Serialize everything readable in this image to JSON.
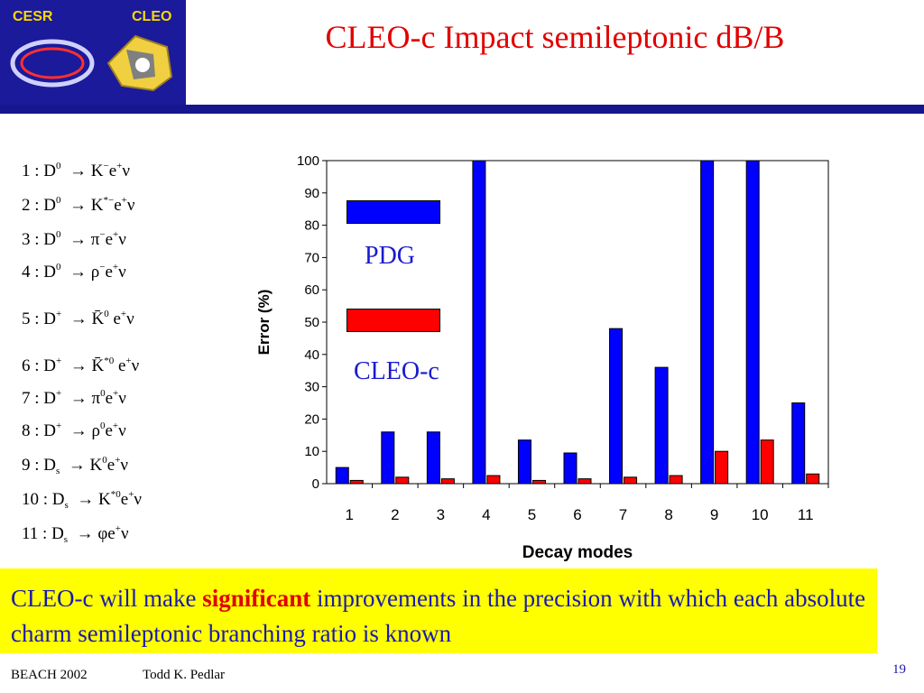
{
  "logo": {
    "left_text": "CESR",
    "right_text": "CLEO"
  },
  "title": "CLEO-c Impact semileptonic dB/B",
  "decay_modes": [
    {
      "n": "1",
      "parent": "D",
      "parent_sup": "0",
      "parent_sub": "",
      "arrow": "→",
      "final": [
        {
          "t": "K"
        },
        {
          "sup": "−"
        },
        {
          "t": "e"
        },
        {
          "sup": "+"
        },
        {
          "t": "ν"
        }
      ]
    },
    {
      "n": "2",
      "parent": "D",
      "parent_sup": "0",
      "parent_sub": "",
      "arrow": "→",
      "final": [
        {
          "t": "K"
        },
        {
          "sup": "*−"
        },
        {
          "t": "e"
        },
        {
          "sup": "+"
        },
        {
          "t": "ν"
        }
      ]
    },
    {
      "n": "3",
      "parent": "D",
      "parent_sup": "0",
      "parent_sub": "",
      "arrow": "→",
      "final": [
        {
          "t": "π"
        },
        {
          "sup": "−"
        },
        {
          "t": "e"
        },
        {
          "sup": "+"
        },
        {
          "t": "ν"
        }
      ]
    },
    {
      "n": "4",
      "parent": "D",
      "parent_sup": "0",
      "parent_sub": "",
      "arrow": "→",
      "final": [
        {
          "t": "ρ"
        },
        {
          "sup": "−"
        },
        {
          "t": "e"
        },
        {
          "sup": "+"
        },
        {
          "t": "ν"
        }
      ]
    },
    {
      "n": "5",
      "parent": "D",
      "parent_sup": "+",
      "parent_sub": "",
      "arrow": "→",
      "final": [
        {
          "t": "K̄"
        },
        {
          "sup": "0"
        },
        {
          "t": " e"
        },
        {
          "sup": "+"
        },
        {
          "t": "ν"
        }
      ]
    },
    {
      "n": "6",
      "parent": "D",
      "parent_sup": "+",
      "parent_sub": "",
      "arrow": "→",
      "final": [
        {
          "t": "K̄"
        },
        {
          "sup": "*0"
        },
        {
          "t": " e"
        },
        {
          "sup": "+"
        },
        {
          "t": "ν"
        }
      ]
    },
    {
      "n": "7",
      "parent": "D",
      "parent_sup": "+",
      "parent_sub": "",
      "arrow": "→",
      "final": [
        {
          "t": "π"
        },
        {
          "sup": "0"
        },
        {
          "t": "e"
        },
        {
          "sup": "+"
        },
        {
          "t": "ν"
        }
      ]
    },
    {
      "n": "8",
      "parent": "D",
      "parent_sup": "+",
      "parent_sub": "",
      "arrow": "→",
      "final": [
        {
          "t": "ρ"
        },
        {
          "sup": "0"
        },
        {
          "t": "e"
        },
        {
          "sup": "+"
        },
        {
          "t": "ν"
        }
      ]
    },
    {
      "n": "9",
      "parent": "D",
      "parent_sup": "",
      "parent_sub": "s",
      "arrow": "→",
      "final": [
        {
          "t": "K"
        },
        {
          "sup": "0"
        },
        {
          "t": "e"
        },
        {
          "sup": "+"
        },
        {
          "t": "ν"
        }
      ]
    },
    {
      "n": "10",
      "parent": "D",
      "parent_sup": "",
      "parent_sub": "s",
      "arrow": "→",
      "final": [
        {
          "t": "K"
        },
        {
          "sup": "*0"
        },
        {
          "t": "e"
        },
        {
          "sup": "+"
        },
        {
          "t": "ν"
        }
      ]
    },
    {
      "n": "11",
      "parent": "D",
      "parent_sup": "",
      "parent_sub": "s",
      "arrow": "→",
      "final": [
        {
          "t": "φ"
        },
        {
          "t": "e"
        },
        {
          "sup": "+"
        },
        {
          "t": "ν"
        }
      ]
    }
  ],
  "chart_data": {
    "type": "bar",
    "categories": [
      "1",
      "2",
      "3",
      "4",
      "5",
      "6",
      "7",
      "8",
      "9",
      "10",
      "11"
    ],
    "series": [
      {
        "name": "PDG",
        "color": "#0000ff",
        "values": [
          5,
          16,
          16,
          100,
          13.5,
          9.5,
          48,
          36,
          100,
          100,
          25
        ]
      },
      {
        "name": "CLEO-c",
        "color": "#ff0000",
        "values": [
          1,
          2,
          1.5,
          2.5,
          1,
          1.5,
          2,
          2.5,
          10,
          13.5,
          3
        ]
      }
    ],
    "xlabel": "Decay modes",
    "ylabel": "Error (%)",
    "ylim": [
      0,
      100
    ],
    "yticks": [
      0,
      10,
      20,
      30,
      40,
      50,
      60,
      70,
      80,
      90,
      100
    ],
    "grid": false,
    "legend": "inside-left"
  },
  "bottom": {
    "text_before": "CLEO-c will make ",
    "highlight": "significant",
    "text_after": " improvements in the precision with which each absolute charm semileptonic branching ratio is known"
  },
  "footer": {
    "conference": "BEACH 2002",
    "author": "Todd K. Pedlar",
    "page": "19"
  },
  "colors": {
    "accent_blue": "#16168f",
    "title_red": "#e10000",
    "highlight_yellow": "#ffff00"
  }
}
